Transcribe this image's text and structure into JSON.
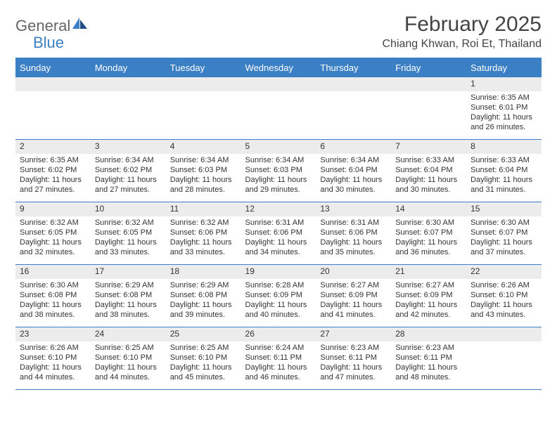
{
  "brand": {
    "part1": "General",
    "part2": "Blue"
  },
  "title": "February 2025",
  "location": "Chiang Khwan, Roi Et, Thailand",
  "header_bg": "#3b7fc4",
  "dow": [
    "Sunday",
    "Monday",
    "Tuesday",
    "Wednesday",
    "Thursday",
    "Friday",
    "Saturday"
  ],
  "weeks": [
    [
      {
        "n": "",
        "sr": "",
        "ss": "",
        "dl": ""
      },
      {
        "n": "",
        "sr": "",
        "ss": "",
        "dl": ""
      },
      {
        "n": "",
        "sr": "",
        "ss": "",
        "dl": ""
      },
      {
        "n": "",
        "sr": "",
        "ss": "",
        "dl": ""
      },
      {
        "n": "",
        "sr": "",
        "ss": "",
        "dl": ""
      },
      {
        "n": "",
        "sr": "",
        "ss": "",
        "dl": ""
      },
      {
        "n": "1",
        "sr": "Sunrise: 6:35 AM",
        "ss": "Sunset: 6:01 PM",
        "dl": "Daylight: 11 hours and 26 minutes."
      }
    ],
    [
      {
        "n": "2",
        "sr": "Sunrise: 6:35 AM",
        "ss": "Sunset: 6:02 PM",
        "dl": "Daylight: 11 hours and 27 minutes."
      },
      {
        "n": "3",
        "sr": "Sunrise: 6:34 AM",
        "ss": "Sunset: 6:02 PM",
        "dl": "Daylight: 11 hours and 27 minutes."
      },
      {
        "n": "4",
        "sr": "Sunrise: 6:34 AM",
        "ss": "Sunset: 6:03 PM",
        "dl": "Daylight: 11 hours and 28 minutes."
      },
      {
        "n": "5",
        "sr": "Sunrise: 6:34 AM",
        "ss": "Sunset: 6:03 PM",
        "dl": "Daylight: 11 hours and 29 minutes."
      },
      {
        "n": "6",
        "sr": "Sunrise: 6:34 AM",
        "ss": "Sunset: 6:04 PM",
        "dl": "Daylight: 11 hours and 30 minutes."
      },
      {
        "n": "7",
        "sr": "Sunrise: 6:33 AM",
        "ss": "Sunset: 6:04 PM",
        "dl": "Daylight: 11 hours and 30 minutes."
      },
      {
        "n": "8",
        "sr": "Sunrise: 6:33 AM",
        "ss": "Sunset: 6:04 PM",
        "dl": "Daylight: 11 hours and 31 minutes."
      }
    ],
    [
      {
        "n": "9",
        "sr": "Sunrise: 6:32 AM",
        "ss": "Sunset: 6:05 PM",
        "dl": "Daylight: 11 hours and 32 minutes."
      },
      {
        "n": "10",
        "sr": "Sunrise: 6:32 AM",
        "ss": "Sunset: 6:05 PM",
        "dl": "Daylight: 11 hours and 33 minutes."
      },
      {
        "n": "11",
        "sr": "Sunrise: 6:32 AM",
        "ss": "Sunset: 6:06 PM",
        "dl": "Daylight: 11 hours and 33 minutes."
      },
      {
        "n": "12",
        "sr": "Sunrise: 6:31 AM",
        "ss": "Sunset: 6:06 PM",
        "dl": "Daylight: 11 hours and 34 minutes."
      },
      {
        "n": "13",
        "sr": "Sunrise: 6:31 AM",
        "ss": "Sunset: 6:06 PM",
        "dl": "Daylight: 11 hours and 35 minutes."
      },
      {
        "n": "14",
        "sr": "Sunrise: 6:30 AM",
        "ss": "Sunset: 6:07 PM",
        "dl": "Daylight: 11 hours and 36 minutes."
      },
      {
        "n": "15",
        "sr": "Sunrise: 6:30 AM",
        "ss": "Sunset: 6:07 PM",
        "dl": "Daylight: 11 hours and 37 minutes."
      }
    ],
    [
      {
        "n": "16",
        "sr": "Sunrise: 6:30 AM",
        "ss": "Sunset: 6:08 PM",
        "dl": "Daylight: 11 hours and 38 minutes."
      },
      {
        "n": "17",
        "sr": "Sunrise: 6:29 AM",
        "ss": "Sunset: 6:08 PM",
        "dl": "Daylight: 11 hours and 38 minutes."
      },
      {
        "n": "18",
        "sr": "Sunrise: 6:29 AM",
        "ss": "Sunset: 6:08 PM",
        "dl": "Daylight: 11 hours and 39 minutes."
      },
      {
        "n": "19",
        "sr": "Sunrise: 6:28 AM",
        "ss": "Sunset: 6:09 PM",
        "dl": "Daylight: 11 hours and 40 minutes."
      },
      {
        "n": "20",
        "sr": "Sunrise: 6:27 AM",
        "ss": "Sunset: 6:09 PM",
        "dl": "Daylight: 11 hours and 41 minutes."
      },
      {
        "n": "21",
        "sr": "Sunrise: 6:27 AM",
        "ss": "Sunset: 6:09 PM",
        "dl": "Daylight: 11 hours and 42 minutes."
      },
      {
        "n": "22",
        "sr": "Sunrise: 6:26 AM",
        "ss": "Sunset: 6:10 PM",
        "dl": "Daylight: 11 hours and 43 minutes."
      }
    ],
    [
      {
        "n": "23",
        "sr": "Sunrise: 6:26 AM",
        "ss": "Sunset: 6:10 PM",
        "dl": "Daylight: 11 hours and 44 minutes."
      },
      {
        "n": "24",
        "sr": "Sunrise: 6:25 AM",
        "ss": "Sunset: 6:10 PM",
        "dl": "Daylight: 11 hours and 44 minutes."
      },
      {
        "n": "25",
        "sr": "Sunrise: 6:25 AM",
        "ss": "Sunset: 6:10 PM",
        "dl": "Daylight: 11 hours and 45 minutes."
      },
      {
        "n": "26",
        "sr": "Sunrise: 6:24 AM",
        "ss": "Sunset: 6:11 PM",
        "dl": "Daylight: 11 hours and 46 minutes."
      },
      {
        "n": "27",
        "sr": "Sunrise: 6:23 AM",
        "ss": "Sunset: 6:11 PM",
        "dl": "Daylight: 11 hours and 47 minutes."
      },
      {
        "n": "28",
        "sr": "Sunrise: 6:23 AM",
        "ss": "Sunset: 6:11 PM",
        "dl": "Daylight: 11 hours and 48 minutes."
      },
      {
        "n": "",
        "sr": "",
        "ss": "",
        "dl": ""
      }
    ]
  ]
}
